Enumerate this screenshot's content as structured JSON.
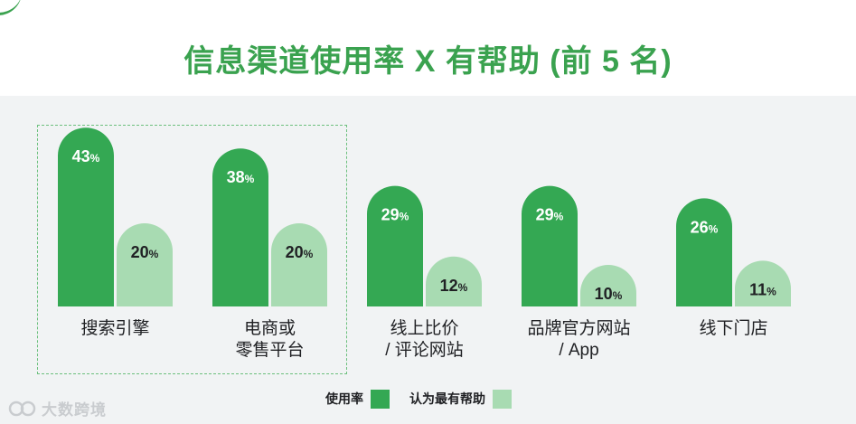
{
  "title": "信息渠道使用率 X 有帮助 (前 5 名)",
  "colors": {
    "usage": "#34a853",
    "helpful": "#a8dbb2",
    "accent": "#3aa24f"
  },
  "watermark": "大数跨境",
  "legend": [
    {
      "label": "使用率",
      "color": "#34a853"
    },
    {
      "label": "认为最有帮助",
      "color": "#a8dbb2"
    }
  ],
  "chart_data": {
    "type": "bar",
    "categories": [
      "搜索引擎",
      "电商或\n零售平台",
      "线上比价\n/ 评论网站",
      "品牌官方网站\n/ App",
      "线下门店"
    ],
    "series": [
      {
        "name": "使用率",
        "values": [
          43,
          38,
          29,
          29,
          26
        ]
      },
      {
        "name": "认为最有帮助",
        "values": [
          20,
          20,
          12,
          10,
          11
        ]
      }
    ],
    "value_suffix": "%",
    "ylim": [
      0,
      50
    ],
    "grid": false,
    "legend_position": "bottom"
  }
}
